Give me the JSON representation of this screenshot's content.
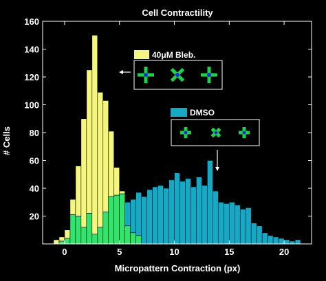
{
  "chart_data": {
    "type": "bar",
    "title": "Cell Contractility",
    "xlabel": "Micropattern Contraction (px)",
    "ylabel": "# Cells",
    "xlim": [
      -2,
      22.5
    ],
    "ylim": [
      0,
      160
    ],
    "xticks": [
      0,
      5,
      10,
      15,
      20
    ],
    "yticks": [
      20,
      40,
      60,
      80,
      100,
      120,
      140,
      160
    ],
    "bin_width": 0.5,
    "legend": [
      {
        "name": "40μM Bleb.",
        "color": "#f5f582"
      },
      {
        "name": "DMSO",
        "color": "#19a8c4"
      }
    ],
    "overlap_color": "#33e26f",
    "series": [
      {
        "name": "40μM Bleb.",
        "color": "#f5f582",
        "bin_starts": [
          -1,
          -0.5,
          0,
          0.5,
          1,
          1.5,
          2,
          2.5,
          3,
          3.5,
          4,
          4.5,
          5,
          5.5,
          6,
          6.5
        ],
        "values": [
          3,
          5,
          10,
          32,
          56,
          90,
          125,
          150,
          109,
          103,
          81,
          55,
          38,
          13,
          8,
          6
        ]
      },
      {
        "name": "DMSO",
        "color": "#19a8c4",
        "bin_starts": [
          -0.5,
          0,
          0.5,
          1,
          1.5,
          2,
          2.5,
          3,
          3.5,
          4,
          4.5,
          5,
          5.5,
          6,
          6.5,
          7,
          7.5,
          8,
          8.5,
          9,
          9.5,
          10,
          10.5,
          11,
          11.5,
          12,
          12.5,
          13,
          13.5,
          14,
          14.5,
          15,
          15.5,
          16,
          16.5,
          17,
          17.5,
          18,
          18.5,
          19,
          19.5,
          20,
          20.5,
          21
        ],
        "values": [
          2,
          4,
          21,
          20,
          12,
          22,
          7,
          12,
          23,
          34,
          35,
          36,
          30,
          32,
          37,
          34,
          39,
          41,
          42,
          40,
          46,
          51,
          45,
          47,
          41,
          48,
          42,
          60,
          38,
          30,
          29,
          30,
          28,
          25,
          26,
          15,
          13,
          8,
          6,
          5,
          4,
          3,
          2,
          3
        ]
      }
    ],
    "annotations": [
      {
        "text": "arrow",
        "points_to": "40μM Bleb."
      },
      {
        "text": "arrow",
        "points_to": "DMSO"
      }
    ]
  }
}
